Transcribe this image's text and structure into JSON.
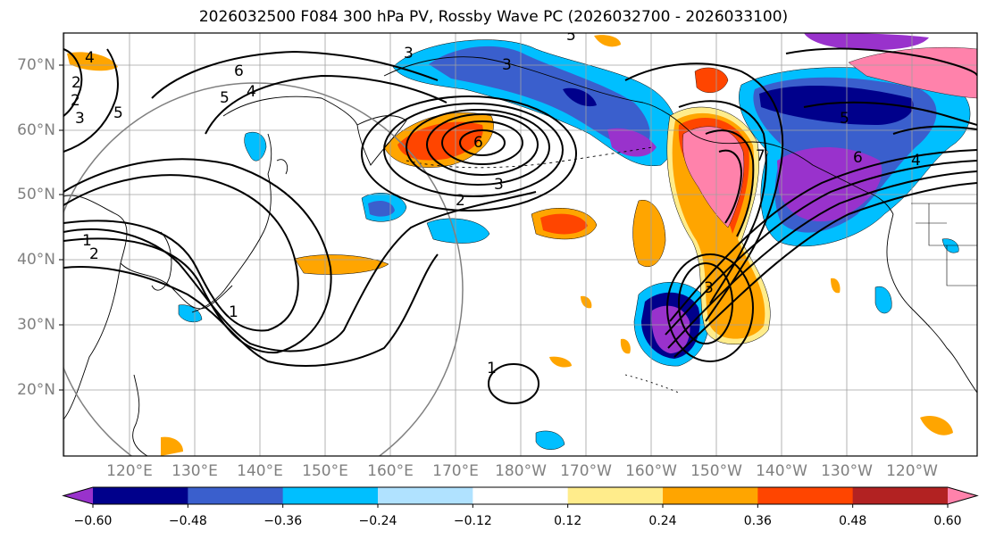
{
  "title": "2026032500 F084 300 hPa PV, Rossby Wave PC (2026032700 - 2026033100)",
  "map": {
    "lon_labels": [
      "120°E",
      "130°E",
      "140°E",
      "150°E",
      "160°E",
      "170°E",
      "180°W",
      "170°W",
      "160°W",
      "150°W",
      "140°W",
      "130°W",
      "120°W"
    ],
    "lat_labels": [
      "70°N",
      "60°N",
      "50°N",
      "40°N",
      "30°N",
      "20°N"
    ],
    "contour_labels": [
      "3",
      "3",
      "4",
      "5",
      "6",
      "2",
      "3",
      "5",
      "4",
      "6",
      "5",
      "4",
      "3",
      "2",
      "1",
      "2",
      "7",
      "6",
      "5",
      "3",
      "2",
      "1",
      "1"
    ],
    "colors": {
      "c1": "#9932cc",
      "c2": "#00008b",
      "c3": "#3a5fcd",
      "c4": "#00bfff",
      "c5": "#b0e2ff",
      "c6": "#ffffff",
      "c7": "#ffec8b",
      "c8": "#ffa500",
      "c9": "#ff4500",
      "c10": "#b22222",
      "c11": "#ff82ab",
      "contour": "#000000",
      "grid": "#a0a0a0",
      "coast": "#000000",
      "circle": "#808080"
    }
  },
  "colorbar": {
    "tick_labels": [
      "−0.60",
      "−0.48",
      "−0.36",
      "−0.24",
      "−0.12",
      "0.12",
      "0.24",
      "0.36",
      "0.48",
      "0.60"
    ],
    "colors": [
      "#9932cc",
      "#00008b",
      "#3a5fcd",
      "#00bfff",
      "#b0e2ff",
      "#ffffff",
      "#ffec8b",
      "#ffa500",
      "#ff4500",
      "#b22222",
      "#ff82ab"
    ]
  }
}
